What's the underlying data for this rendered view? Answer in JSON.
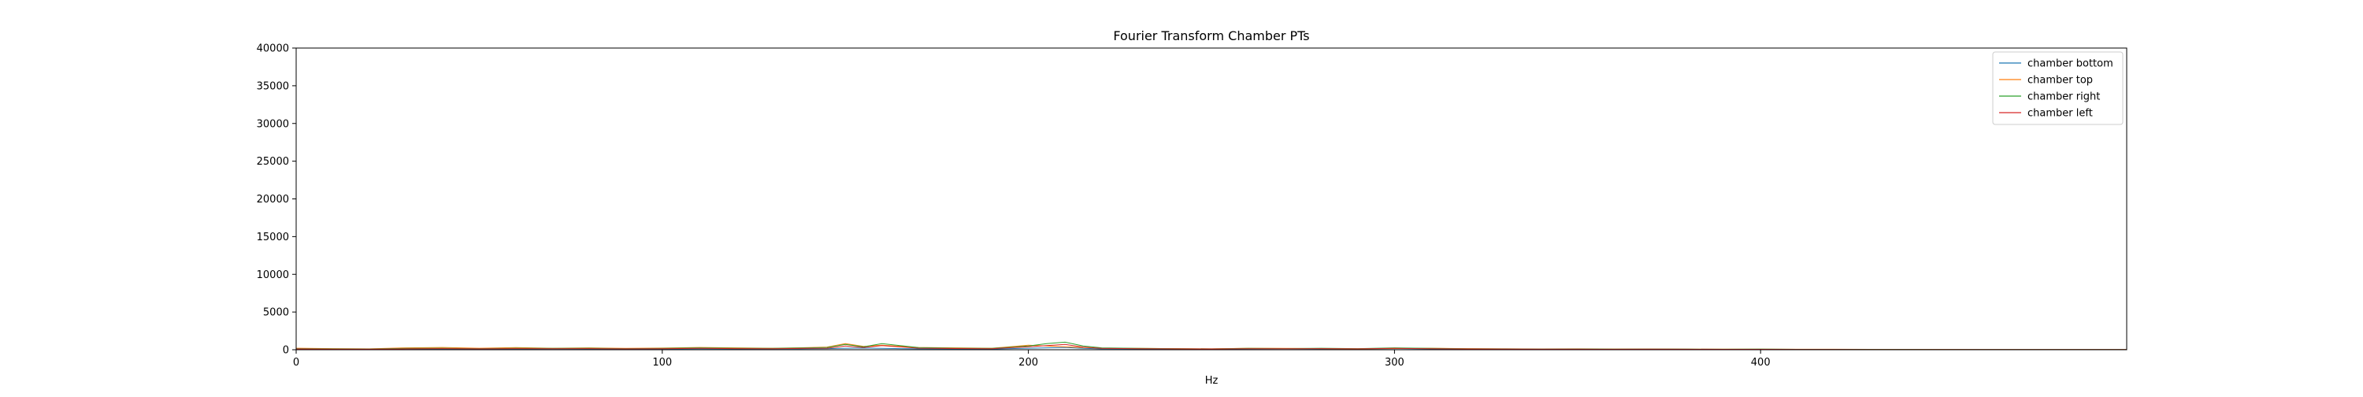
{
  "chart_data": {
    "type": "line",
    "title": "Fourier Transform Chamber PTs",
    "xlabel": "Hz",
    "ylabel": "",
    "xlim": [
      0,
      500
    ],
    "ylim": [
      0,
      40000
    ],
    "x_ticks": [
      0,
      100,
      200,
      300,
      400
    ],
    "y_ticks": [
      0,
      5000,
      10000,
      15000,
      20000,
      25000,
      30000,
      35000,
      40000
    ],
    "grid": false,
    "legend_position": "top-right",
    "x": [
      0,
      10,
      20,
      30,
      40,
      50,
      60,
      70,
      80,
      90,
      100,
      110,
      120,
      130,
      140,
      145,
      150,
      155,
      160,
      170,
      180,
      190,
      200,
      205,
      210,
      215,
      220,
      230,
      240,
      250,
      260,
      270,
      280,
      290,
      300,
      310,
      320,
      330,
      340,
      350,
      360,
      370,
      380,
      390,
      400,
      410,
      420,
      430,
      440,
      450,
      460,
      470,
      480,
      490,
      500
    ],
    "series": [
      {
        "name": "chamber bottom",
        "color": "#1f77b4",
        "values": [
          150,
          100,
          80,
          110,
          90,
          100,
          90,
          120,
          100,
          80,
          90,
          120,
          100,
          110,
          130,
          150,
          200,
          220,
          180,
          120,
          100,
          90,
          200,
          250,
          300,
          180,
          120,
          100,
          90,
          80,
          120,
          150,
          100,
          90,
          150,
          100,
          80,
          90,
          70,
          80,
          60,
          70,
          60,
          50,
          60,
          50,
          40,
          40,
          30,
          30,
          20,
          20,
          20,
          20,
          20
        ]
      },
      {
        "name": "chamber top",
        "color": "#ff7f0e",
        "values": [
          200,
          150,
          120,
          250,
          300,
          200,
          280,
          200,
          250,
          180,
          220,
          300,
          250,
          200,
          280,
          350,
          800,
          450,
          600,
          300,
          250,
          200,
          600,
          500,
          400,
          300,
          200,
          180,
          150,
          120,
          200,
          180,
          150,
          120,
          160,
          200,
          150,
          120,
          100,
          120,
          90,
          100,
          80,
          70,
          80,
          60,
          60,
          50,
          40,
          40,
          30,
          30,
          30,
          20,
          20
        ]
      },
      {
        "name": "chamber right",
        "color": "#2ca02c",
        "values": [
          150,
          120,
          100,
          180,
          200,
          150,
          200,
          180,
          200,
          150,
          180,
          250,
          200,
          180,
          250,
          300,
          700,
          400,
          800,
          280,
          200,
          180,
          500,
          800,
          1000,
          500,
          250,
          180,
          150,
          120,
          180,
          160,
          200,
          150,
          250,
          180,
          130,
          110,
          90,
          100,
          80,
          90,
          70,
          60,
          70,
          50,
          50,
          40,
          40,
          30,
          30,
          30,
          20,
          20,
          20
        ]
      },
      {
        "name": "chamber left",
        "color": "#d62728",
        "values": [
          100,
          80,
          70,
          120,
          150,
          110,
          150,
          130,
          150,
          110,
          130,
          180,
          150,
          130,
          180,
          200,
          500,
          300,
          550,
          200,
          160,
          140,
          400,
          550,
          700,
          350,
          180,
          140,
          120,
          100,
          140,
          130,
          150,
          120,
          180,
          140,
          100,
          90,
          70,
          80,
          60,
          70,
          60,
          50,
          50,
          40,
          40,
          30,
          30,
          30,
          20,
          20,
          20,
          20,
          20
        ]
      }
    ]
  }
}
